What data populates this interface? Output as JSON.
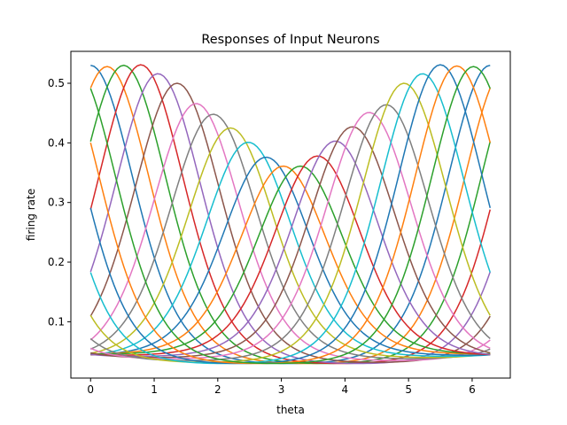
{
  "chart_data": {
    "type": "line",
    "title": "Responses of Input Neurons",
    "xlabel": "theta",
    "ylabel": "firing rate",
    "xlim": [
      -0.31,
      6.6
    ],
    "ylim": [
      0.0055,
      0.5535
    ],
    "xticks": [
      0,
      1,
      2,
      3,
      4,
      5,
      6
    ],
    "xtick_labels": [
      "0",
      "1",
      "2",
      "3",
      "4",
      "5",
      "6"
    ],
    "yticks": [
      0.1,
      0.2,
      0.3,
      0.4,
      0.5
    ],
    "ytick_labels": [
      "0.1",
      "0.2",
      "0.3",
      "0.4",
      "0.5"
    ],
    "x_range": [
      0,
      6.2832
    ],
    "samples_per_series": 121,
    "grid": false,
    "legend": "none",
    "colors": [
      "#1f77b4",
      "#ff7f0e",
      "#2ca02c",
      "#d62728",
      "#9467bd",
      "#8c564b",
      "#e377c2",
      "#7f7f7f",
      "#bcbd22",
      "#17becf"
    ],
    "series": [
      {
        "peak_x": 0.0,
        "peak_y": 0.53,
        "baseline": 0.03,
        "kappa": 2.2
      },
      {
        "peak_x": 0.26,
        "peak_y": 0.528,
        "baseline": 0.03,
        "kappa": 2.2
      },
      {
        "peak_x": 0.52,
        "peak_y": 0.53,
        "baseline": 0.03,
        "kappa": 2.2
      },
      {
        "peak_x": 0.79,
        "peak_y": 0.531,
        "baseline": 0.03,
        "kappa": 2.2
      },
      {
        "peak_x": 1.06,
        "peak_y": 0.516,
        "baseline": 0.03,
        "kappa": 2.2
      },
      {
        "peak_x": 1.36,
        "peak_y": 0.5,
        "baseline": 0.032,
        "kappa": 2.2
      },
      {
        "peak_x": 1.66,
        "peak_y": 0.466,
        "baseline": 0.035,
        "kappa": 2.2
      },
      {
        "peak_x": 1.93,
        "peak_y": 0.448,
        "baseline": 0.038,
        "kappa": 2.2
      },
      {
        "peak_x": 2.2,
        "peak_y": 0.425,
        "baseline": 0.04,
        "kappa": 2.2
      },
      {
        "peak_x": 2.48,
        "peak_y": 0.401,
        "baseline": 0.042,
        "kappa": 2.2
      },
      {
        "peak_x": 2.76,
        "peak_y": 0.376,
        "baseline": 0.044,
        "kappa": 2.2
      },
      {
        "peak_x": 3.03,
        "peak_y": 0.361,
        "baseline": 0.046,
        "kappa": 2.2
      },
      {
        "peak_x": 3.3,
        "peak_y": 0.361,
        "baseline": 0.046,
        "kappa": 2.2
      },
      {
        "peak_x": 3.57,
        "peak_y": 0.378,
        "baseline": 0.044,
        "kappa": 2.2
      },
      {
        "peak_x": 3.85,
        "peak_y": 0.403,
        "baseline": 0.042,
        "kappa": 2.2
      },
      {
        "peak_x": 4.12,
        "peak_y": 0.427,
        "baseline": 0.04,
        "kappa": 2.2
      },
      {
        "peak_x": 4.38,
        "peak_y": 0.451,
        "baseline": 0.038,
        "kappa": 2.2
      },
      {
        "peak_x": 4.65,
        "peak_y": 0.464,
        "baseline": 0.035,
        "kappa": 2.2
      },
      {
        "peak_x": 4.93,
        "peak_y": 0.5,
        "baseline": 0.032,
        "kappa": 2.2
      },
      {
        "peak_x": 5.22,
        "peak_y": 0.516,
        "baseline": 0.03,
        "kappa": 2.2
      },
      {
        "peak_x": 5.5,
        "peak_y": 0.531,
        "baseline": 0.03,
        "kappa": 2.2
      },
      {
        "peak_x": 5.76,
        "peak_y": 0.529,
        "baseline": 0.03,
        "kappa": 2.2
      },
      {
        "peak_x": 6.02,
        "peak_y": 0.528,
        "baseline": 0.03,
        "kappa": 2.2
      }
    ]
  }
}
